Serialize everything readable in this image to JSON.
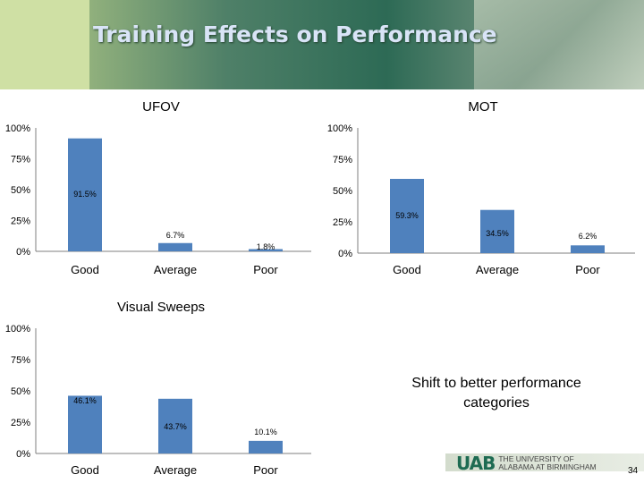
{
  "slide": {
    "title": "Training Effects on Performance",
    "shift_text_line1": "Shift to better performance",
    "shift_text_line2": "categories",
    "logo_mark": "UAB",
    "logo_text": "THE UNIVERSITY OF\nALABAMA AT BIRMINGHAM",
    "page_number": "34",
    "bar_color": "#4f81bd"
  },
  "chart_data": [
    {
      "type": "bar",
      "title": "UFOV",
      "categories": [
        "Good",
        "Average",
        "Poor"
      ],
      "values": [
        91.5,
        6.7,
        1.8
      ],
      "data_labels": [
        "91.5%",
        "6.7%",
        "1.8%"
      ],
      "yticks": [
        "0%",
        "25%",
        "50%",
        "75%",
        "100%"
      ],
      "ylim": [
        0,
        100
      ],
      "xlabel": "",
      "ylabel": ""
    },
    {
      "type": "bar",
      "title": "MOT",
      "categories": [
        "Good",
        "Average",
        "Poor"
      ],
      "values": [
        59.3,
        34.5,
        6.2
      ],
      "data_labels": [
        "59.3%",
        "34.5%",
        "6.2%"
      ],
      "yticks": [
        "0%",
        "25%",
        "50%",
        "75%",
        "100%"
      ],
      "ylim": [
        0,
        100
      ],
      "xlabel": "",
      "ylabel": ""
    },
    {
      "type": "bar",
      "title": "Visual Sweeps",
      "categories": [
        "Good",
        "Average",
        "Poor"
      ],
      "values": [
        46.1,
        43.7,
        10.1
      ],
      "data_labels": [
        "46.1%",
        "43.7%",
        "10.1%"
      ],
      "yticks": [
        "0%",
        "25%",
        "50%",
        "75%",
        "100%"
      ],
      "ylim": [
        0,
        100
      ],
      "xlabel": "",
      "ylabel": ""
    }
  ]
}
